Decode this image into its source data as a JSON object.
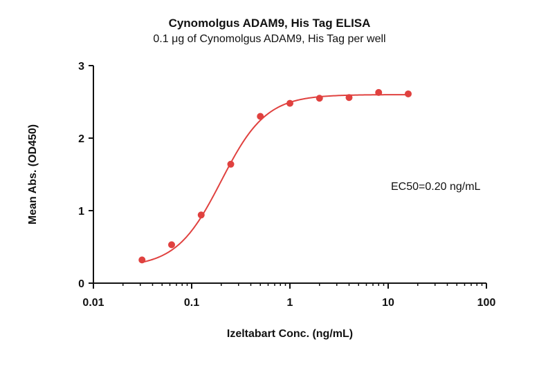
{
  "chart_data": {
    "type": "scatter",
    "title": "Cynomolgus ADAM9, His Tag ELISA",
    "subtitle": "0.1 μg of Cynomolgus ADAM9, His Tag per well",
    "xlabel": "Izeltabart Conc. (ng/mL)",
    "ylabel": "Mean Abs. (OD450)",
    "x_scale": "log",
    "xlim": [
      0.01,
      100
    ],
    "ylim": [
      0,
      3
    ],
    "x_ticks": [
      0.01,
      0.1,
      1,
      10,
      100
    ],
    "x_tick_labels": [
      "0.01",
      "0.1",
      "1",
      "10",
      "100"
    ],
    "y_ticks": [
      0,
      1,
      2,
      3
    ],
    "y_tick_labels": [
      "0",
      "1",
      "2",
      "3"
    ],
    "series": [
      {
        "x": [
          0.03125,
          0.0625,
          0.125,
          0.25,
          0.5,
          1,
          2,
          4,
          8,
          16
        ],
        "y": [
          0.32,
          0.53,
          0.94,
          1.64,
          2.3,
          2.48,
          2.55,
          2.56,
          2.63,
          2.61
        ],
        "color": "#e0413f"
      }
    ],
    "fit_curve": {
      "model": "4PL",
      "bottom": 0.22,
      "top": 2.6,
      "ec50": 0.2,
      "hill": 1.9,
      "color": "#e0413f"
    },
    "annotation": "EC50=0.20 ng/mL",
    "grid": false,
    "legend": "none"
  }
}
